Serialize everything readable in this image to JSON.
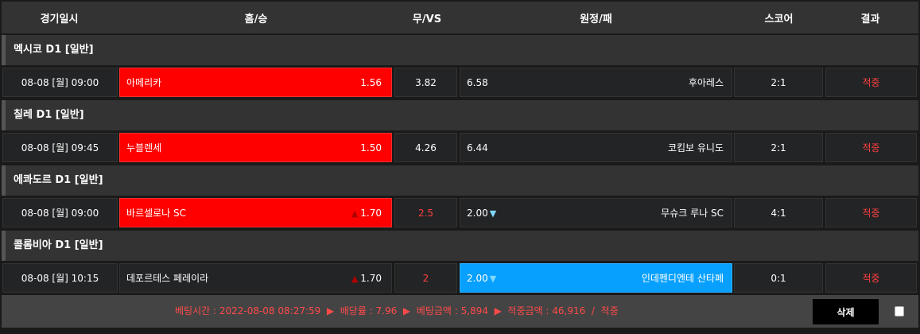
{
  "header": {
    "date": "경기일시",
    "home": "홈/승",
    "draw": "무/VS",
    "away": "원정/패",
    "score": "스코어",
    "result": "결과"
  },
  "leagues": [
    {
      "name": "멕시코 D1 [일반]",
      "match": {
        "date": "08-08 [월] 09:00",
        "home": "아메리카",
        "home_odds": "1.56",
        "draw": "3.82",
        "away_odds": "6.58",
        "away": "후아레스",
        "score": "2:1",
        "result": "적중",
        "selected": "home"
      }
    },
    {
      "name": "칠레 D1 [일반]",
      "match": {
        "date": "08-08 [월] 09:45",
        "home": "누블렌세",
        "home_odds": "1.50",
        "draw": "4.26",
        "away_odds": "6.44",
        "away": "코킴보 유니도",
        "score": "2:1",
        "result": "적중",
        "selected": "home"
      }
    },
    {
      "name": "에콰도르 D1 [일반]",
      "match": {
        "date": "08-08 [월] 09:00",
        "home": "바르셀로나 SC",
        "home_odds": "1.70",
        "draw": "2.5",
        "away_odds": "2.00",
        "away": "무슈크 루나 SC",
        "score": "4:1",
        "result": "적중",
        "selected": "home",
        "handicap": true
      }
    },
    {
      "name": "콜롬비아 D1 [일반]",
      "match": {
        "date": "08-08 [월] 10:15",
        "home": "데포르테스 페레이라",
        "home_odds": "1.70",
        "draw": "2",
        "away_odds": "2.00",
        "away": "인데펜디엔테 산타페",
        "score": "0:1",
        "result": "적중",
        "selected": "away",
        "handicap": true
      }
    }
  ],
  "footer": {
    "text": "베팅시간 : 2022-08-08 08:27:59  ▶  배당률 : 7.96  ▶  베팅금액 : 5,894  ▶  적중금액 : 46,916  /  적중",
    "delete_label": "삭제"
  },
  "colors": {
    "selected_home": "#ff0000",
    "selected_away": "#08a0ff",
    "result": "#ff4040"
  }
}
